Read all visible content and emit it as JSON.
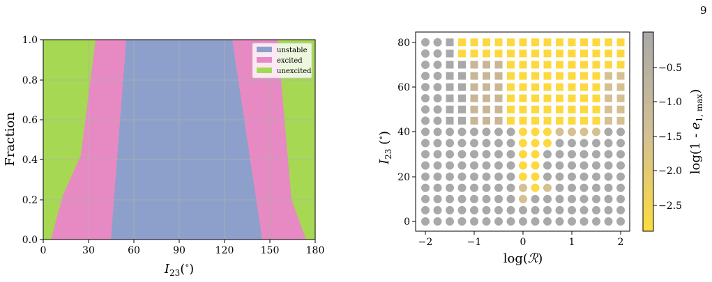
{
  "page_number": "9",
  "chart_data": [
    {
      "type": "area",
      "xlabel": "I23(°)",
      "ylabel": "Fraction",
      "xlim": [
        0,
        180
      ],
      "ylim": [
        0,
        1
      ],
      "x_ticks": [
        "0",
        "30",
        "60",
        "90",
        "120",
        "150",
        "180"
      ],
      "y_ticks": [
        "0.0",
        "0.2",
        "0.4",
        "0.6",
        "0.8",
        "1.0"
      ],
      "grid": true,
      "legend_position": "top-right",
      "series": [
        {
          "name": "unstable",
          "color": "#8da0cb"
        },
        {
          "name": "excited",
          "color": "#e78ac3"
        },
        {
          "name": "unexcited",
          "color": "#a6d854"
        }
      ],
      "boundaries": {
        "unexcited_top_left": [
          [
            5,
            0
          ],
          [
            13,
            0.22
          ],
          [
            25,
            0.42
          ],
          [
            35,
            1.0
          ]
        ],
        "unstable_left": [
          [
            45,
            0
          ],
          [
            55,
            1.0
          ]
        ],
        "unstable_right": [
          [
            125,
            1.0
          ],
          [
            145,
            0
          ]
        ],
        "excited_right_edge": [
          [
            155,
            1.0
          ],
          [
            165,
            0.2
          ],
          [
            175,
            0
          ]
        ]
      }
    },
    {
      "type": "scatter",
      "xlabel": "log(R)",
      "ylabel": "I23(°)",
      "xlim": [
        -2.2,
        2.2
      ],
      "ylim": [
        -4,
        84
      ],
      "x_ticks": [
        "−2",
        "−1",
        "0",
        "1",
        "2"
      ],
      "y_ticks": [
        "0",
        "20",
        "40",
        "60",
        "80"
      ],
      "colorbar": {
        "label": "log(1 - e1,max)",
        "ticks": [
          "−0.5",
          "−1.0",
          "−1.5",
          "−2.0",
          "−2.5"
        ],
        "range": [
          -2.85,
          -0.05
        ]
      },
      "x_values": [
        -2.0,
        -1.75,
        -1.5,
        -1.25,
        -1.0,
        -0.75,
        -0.5,
        -0.25,
        0.0,
        0.25,
        0.5,
        0.75,
        1.0,
        1.25,
        1.5,
        1.75,
        2.0
      ],
      "y_values": [
        0,
        5,
        10,
        15,
        20,
        25,
        30,
        35,
        40,
        45,
        50,
        55,
        60,
        65,
        70,
        75,
        80
      ]
    }
  ]
}
